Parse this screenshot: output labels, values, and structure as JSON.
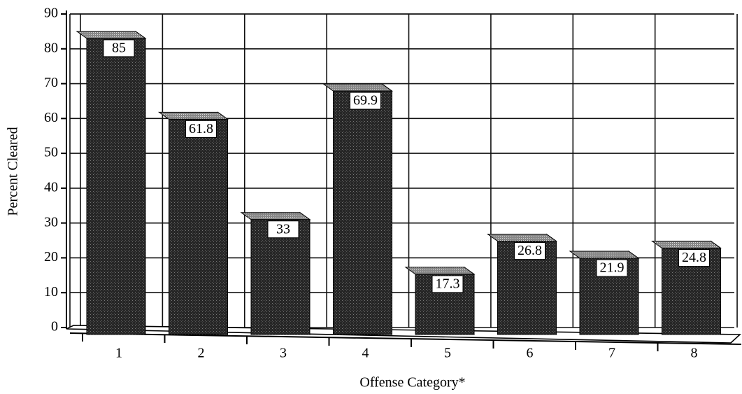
{
  "chart_data": {
    "type": "bar",
    "categories": [
      "1",
      "2",
      "3",
      "4",
      "5",
      "6",
      "7",
      "8"
    ],
    "values": [
      85,
      61.8,
      33,
      69.9,
      17.3,
      26.8,
      21.9,
      24.8
    ],
    "color": "#2a2a2a",
    "ylim": [
      0,
      90
    ],
    "yticks": [
      0,
      10,
      20,
      30,
      40,
      50,
      60,
      70,
      80,
      90
    ],
    "grid": true,
    "ylabel": "Percent Cleared",
    "xlabel": "Offense Category*"
  }
}
